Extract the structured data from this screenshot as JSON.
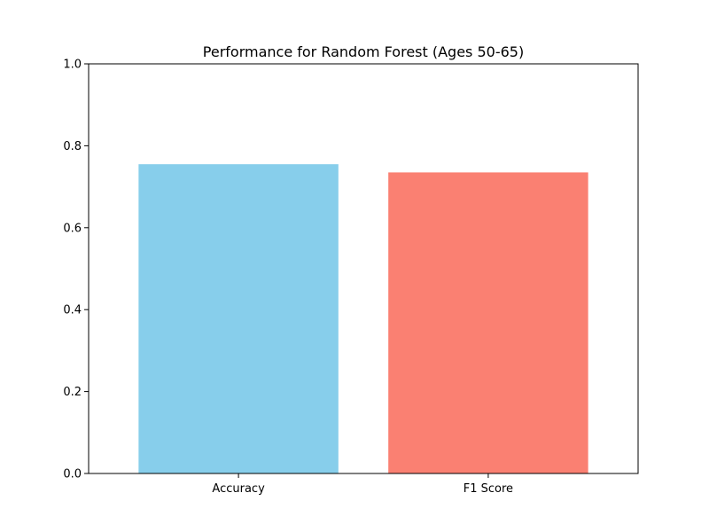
{
  "chart_data": {
    "type": "bar",
    "title": "Performance for Random Forest (Ages 50-65)",
    "xlabel": "",
    "ylabel": "",
    "categories": [
      "Accuracy",
      "F1 Score"
    ],
    "values": [
      0.755,
      0.735
    ],
    "colors": [
      "#87ceeb",
      "#fa8072"
    ],
    "ylim": [
      0,
      1.0
    ],
    "yticks": [
      0.0,
      0.2,
      0.4,
      0.6,
      0.8,
      1.0
    ],
    "ytick_labels": [
      "0.0",
      "0.2",
      "0.4",
      "0.6",
      "0.8",
      "1.0"
    ],
    "grid": false,
    "legend": "none"
  }
}
